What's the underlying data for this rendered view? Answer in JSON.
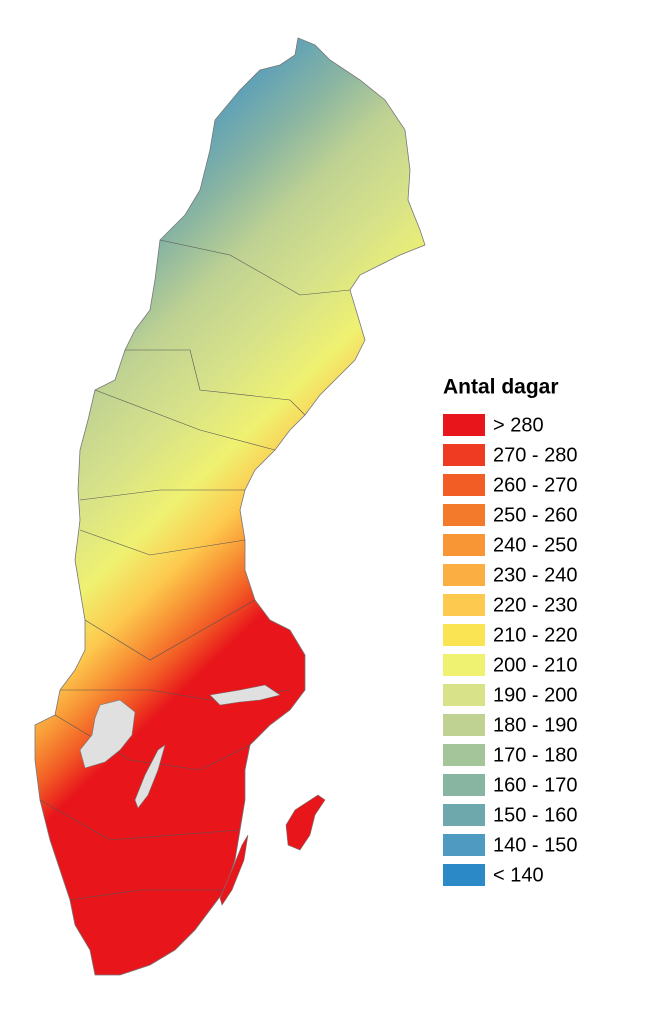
{
  "legend": {
    "title": "Antal dagar",
    "items": [
      {
        "label": "> 280",
        "color": "#e8151b"
      },
      {
        "label": "270 - 280",
        "color": "#ee3b22"
      },
      {
        "label": "260 - 270",
        "color": "#f25c25"
      },
      {
        "label": "250 - 260",
        "color": "#f47a2b"
      },
      {
        "label": "240 - 250",
        "color": "#f89636"
      },
      {
        "label": "230 - 240",
        "color": "#fbae41"
      },
      {
        "label": "220 - 230",
        "color": "#fdc94e"
      },
      {
        "label": "210 - 220",
        "color": "#fbe454"
      },
      {
        "label": "200 - 210",
        "color": "#eff171"
      },
      {
        "label": "190 - 200",
        "color": "#d7e289"
      },
      {
        "label": "180 - 190",
        "color": "#bfd292"
      },
      {
        "label": "170 - 180",
        "color": "#a4c59a"
      },
      {
        "label": "160 - 170",
        "color": "#88b4a2"
      },
      {
        "label": "150 - 160",
        "color": "#6ea7ac"
      },
      {
        "label": "140 - 150",
        "color": "#4f9ac0"
      },
      {
        "label": "< 140",
        "color": "#2b89c8"
      }
    ]
  }
}
